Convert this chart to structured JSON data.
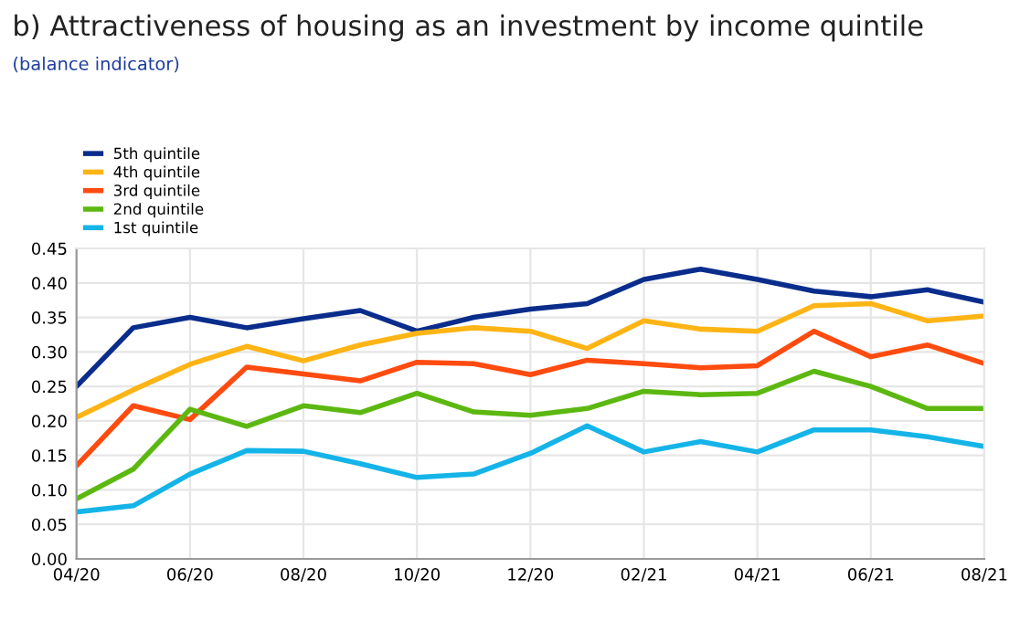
{
  "chart_data": {
    "type": "line",
    "title": "b) Attractiveness of housing as an investment by income quintile",
    "subtitle": "(balance indicator)",
    "categories": [
      "04/20",
      null,
      "06/20",
      null,
      "08/20",
      null,
      "10/20",
      null,
      "12/20",
      null,
      "02/21",
      null,
      "04/21",
      null,
      "06/21",
      null,
      "08/21"
    ],
    "series": [
      {
        "name": "5th quintile",
        "color": "#0a2d8c",
        "values": [
          0.25,
          0.335,
          0.35,
          0.335,
          0.348,
          0.36,
          0.33,
          0.35,
          0.362,
          0.37,
          0.405,
          0.42,
          0.405,
          0.388,
          0.38,
          0.39,
          0.372
        ]
      },
      {
        "name": "4th quintile",
        "color": "#fdb415",
        "values": [
          0.205,
          0.245,
          0.282,
          0.308,
          0.287,
          0.31,
          0.327,
          0.335,
          0.33,
          0.305,
          0.345,
          0.333,
          0.33,
          0.367,
          0.37,
          0.345,
          0.352
        ]
      },
      {
        "name": "3rd quintile",
        "color": "#ff4b0f",
        "values": [
          0.135,
          0.222,
          0.202,
          0.278,
          0.268,
          0.258,
          0.285,
          0.283,
          0.267,
          0.288,
          0.283,
          0.277,
          0.28,
          0.33,
          0.293,
          0.31,
          0.283
        ]
      },
      {
        "name": "2nd quintile",
        "color": "#5cb811",
        "values": [
          0.087,
          0.13,
          0.217,
          0.192,
          0.222,
          0.212,
          0.24,
          0.213,
          0.208,
          0.218,
          0.243,
          0.238,
          0.24,
          0.272,
          0.25,
          0.218,
          0.218
        ]
      },
      {
        "name": "1st quintile",
        "color": "#14b4e8",
        "values": [
          0.068,
          0.077,
          0.123,
          0.157,
          0.156,
          0.138,
          0.118,
          0.123,
          0.153,
          0.193,
          0.155,
          0.17,
          0.155,
          0.187,
          0.187,
          0.177,
          0.163
        ]
      }
    ],
    "ylim": [
      0,
      0.45
    ],
    "yticks": [
      {
        "value": 0,
        "label": "0.00"
      },
      {
        "value": 0.05,
        "label": "0.05"
      },
      {
        "value": 0.1,
        "label": "0.10"
      },
      {
        "value": 0.15,
        "label": "0.15"
      },
      {
        "value": 0.2,
        "label": "0.20"
      },
      {
        "value": 0.25,
        "label": "0.25"
      },
      {
        "value": 0.3,
        "label": "0.30"
      },
      {
        "value": 0.35,
        "label": "0.35"
      },
      {
        "value": 0.4,
        "label": "0.40"
      },
      {
        "value": 0.45,
        "label": "0.45"
      }
    ],
    "grid": true,
    "legend": "top left",
    "marker": "none",
    "line_style": "solid"
  }
}
